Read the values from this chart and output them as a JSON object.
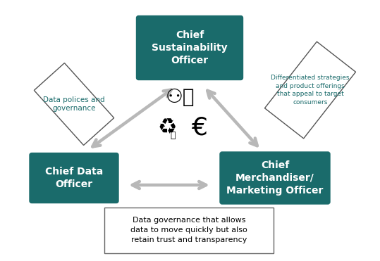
{
  "bg_color": "#ffffff",
  "teal_color": "#1a6b6b",
  "gray_arrow_color": "#b0b0b0",
  "box_text_color": "#ffffff",
  "rotated_text_color": "#1a6b6b",
  "bottom_box_text": "Data governance that allows\ndata to move quickly but also\nretain trust and transparency",
  "box_top_label": "Chief\nSustainability\nOfficer",
  "box_left_label": "Chief Data\nOfficer",
  "box_right_label": "Chief\nMerchandiser/\nMarketing Officer",
  "rotated_left_label": "Data polices and\ngovernance",
  "rotated_right_label": "Differentiated strategies\nand product offerings\nthat appeal to target\nconsumers"
}
